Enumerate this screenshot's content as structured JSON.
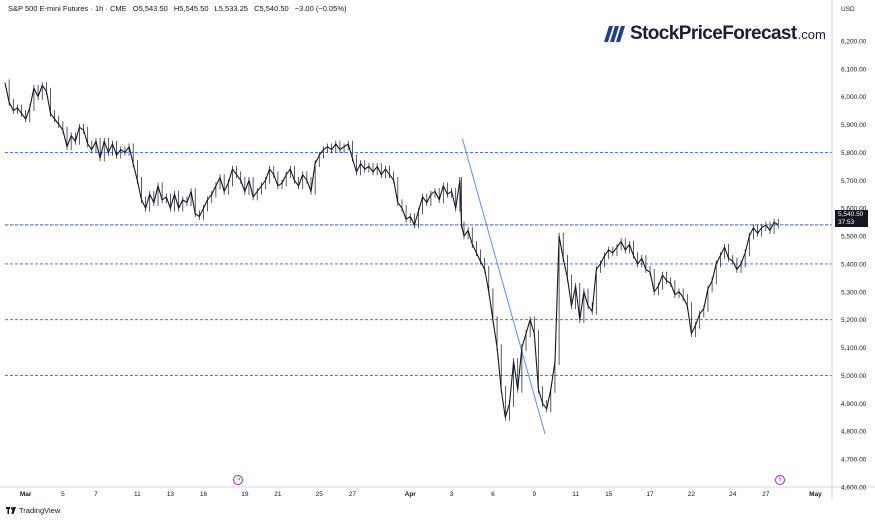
{
  "header": {
    "symbol": "S&P 500 E-mini Futures · 1h · CME",
    "open": "O5,543.50",
    "high": "H5,545.50",
    "low": "L5,533.25",
    "close": "C5,540.50",
    "change": "−3.00 (−0.05%)"
  },
  "logo": {
    "name": "StockPriceForecast",
    "domain": ".com"
  },
  "price_tag": {
    "price": "5,540.50",
    "countdown": "37:53"
  },
  "footer": {
    "brand": "TradingView"
  },
  "colors": {
    "candle": "#131722",
    "support": "#2962ff",
    "trendline": "#5b8def",
    "axis_text": "#131722"
  },
  "chart_data": {
    "type": "candlestick-line",
    "currency": "USD",
    "ylim": [
      4600,
      6300
    ],
    "y_ticks": [
      4600,
      4700,
      4800,
      4900,
      5000,
      5100,
      5200,
      5300,
      5400,
      5500,
      5600,
      5700,
      5800,
      5900,
      6000,
      6100,
      6200
    ],
    "y_tick_labels": [
      "4,600.00",
      "4,700.00",
      "4,800.00",
      "4,900.00",
      "5,000.00",
      "5,100.00",
      "5,200.00",
      "5,300.00",
      "5,400.00",
      "5,500.00",
      "5,600.00",
      "5,700.00",
      "5,800.00",
      "5,900.00",
      "6,000.00",
      "6,100.00",
      "6,200.00"
    ],
    "x_labels": [
      "Mar",
      "5",
      "7",
      "11",
      "13",
      "16",
      "19",
      "21",
      "25",
      "27",
      "Apr",
      "3",
      "6",
      "9",
      "11",
      "15",
      "17",
      "22",
      "24",
      "27",
      "May"
    ],
    "x_label_bold": [
      "Mar",
      "Apr",
      "May"
    ],
    "x_index": [
      2.5,
      7,
      11,
      16,
      20,
      24,
      29,
      33,
      38,
      42,
      49,
      54,
      59,
      64,
      69,
      73,
      78,
      83,
      88,
      92,
      98
    ],
    "x_range": [
      0,
      100
    ],
    "price_series": [
      [
        0,
        6050
      ],
      [
        0.5,
        5980
      ],
      [
        1,
        5950
      ],
      [
        1.5,
        5960
      ],
      [
        2,
        5940
      ],
      [
        2.5,
        5920
      ],
      [
        3,
        5960
      ],
      [
        3.5,
        6030
      ],
      [
        4,
        6000
      ],
      [
        4.5,
        6040
      ],
      [
        5,
        6020
      ],
      [
        5.5,
        5940
      ],
      [
        6,
        5920
      ],
      [
        6.5,
        5900
      ],
      [
        7,
        5880
      ],
      [
        7.5,
        5820
      ],
      [
        8,
        5860
      ],
      [
        8.5,
        5840
      ],
      [
        9,
        5890
      ],
      [
        9.5,
        5880
      ],
      [
        10,
        5830
      ],
      [
        10.5,
        5810
      ],
      [
        11,
        5840
      ],
      [
        11.5,
        5780
      ],
      [
        12,
        5840
      ],
      [
        12.5,
        5800
      ],
      [
        13,
        5830
      ],
      [
        13.5,
        5790
      ],
      [
        14,
        5810
      ],
      [
        14.5,
        5800
      ],
      [
        15,
        5820
      ],
      [
        15.5,
        5760
      ],
      [
        16,
        5700
      ],
      [
        16.5,
        5630
      ],
      [
        17,
        5600
      ],
      [
        17.5,
        5650
      ],
      [
        18,
        5620
      ],
      [
        18.5,
        5680
      ],
      [
        19,
        5630
      ],
      [
        19.5,
        5640
      ],
      [
        20,
        5600
      ],
      [
        20.5,
        5650
      ],
      [
        21,
        5600
      ],
      [
        21.5,
        5630
      ],
      [
        22,
        5620
      ],
      [
        22.5,
        5660
      ],
      [
        23,
        5580
      ],
      [
        23.5,
        5570
      ],
      [
        24,
        5600
      ],
      [
        24.5,
        5630
      ],
      [
        25,
        5650
      ],
      [
        25.5,
        5680
      ],
      [
        26,
        5710
      ],
      [
        26.5,
        5660
      ],
      [
        27,
        5690
      ],
      [
        27.5,
        5740
      ],
      [
        28,
        5720
      ],
      [
        28.5,
        5700
      ],
      [
        29,
        5660
      ],
      [
        29.5,
        5700
      ],
      [
        30,
        5640
      ],
      [
        30.5,
        5660
      ],
      [
        31,
        5680
      ],
      [
        31.5,
        5700
      ],
      [
        32,
        5740
      ],
      [
        32.5,
        5720
      ],
      [
        33,
        5680
      ],
      [
        33.5,
        5690
      ],
      [
        34,
        5720
      ],
      [
        34.5,
        5740
      ],
      [
        35,
        5700
      ],
      [
        35.5,
        5680
      ],
      [
        36,
        5720
      ],
      [
        36.5,
        5700
      ],
      [
        37,
        5660
      ],
      [
        37.5,
        5760
      ],
      [
        38,
        5790
      ],
      [
        38.5,
        5810
      ],
      [
        39,
        5820
      ],
      [
        39.5,
        5810
      ],
      [
        40,
        5830
      ],
      [
        40.5,
        5810
      ],
      [
        41,
        5820
      ],
      [
        41.5,
        5830
      ],
      [
        42,
        5780
      ],
      [
        42.5,
        5730
      ],
      [
        43,
        5760
      ],
      [
        43.5,
        5740
      ],
      [
        44,
        5750
      ],
      [
        44.5,
        5730
      ],
      [
        45,
        5750
      ],
      [
        45.5,
        5720
      ],
      [
        46,
        5740
      ],
      [
        46.5,
        5720
      ],
      [
        47,
        5700
      ],
      [
        47.5,
        5620
      ],
      [
        48,
        5600
      ],
      [
        48.5,
        5560
      ],
      [
        49,
        5570
      ],
      [
        49.5,
        5540
      ],
      [
        50,
        5590
      ],
      [
        50.5,
        5640
      ],
      [
        51,
        5620
      ],
      [
        51.5,
        5650
      ],
      [
        52,
        5660
      ],
      [
        52.5,
        5630
      ],
      [
        53,
        5680
      ],
      [
        53.5,
        5650
      ],
      [
        54,
        5660
      ],
      [
        54.5,
        5600
      ],
      [
        55,
        5700
      ],
      [
        55.2,
        5540
      ],
      [
        55.5,
        5500
      ],
      [
        56,
        5520
      ],
      [
        56.5,
        5470
      ],
      [
        57,
        5440
      ],
      [
        57.5,
        5410
      ],
      [
        58,
        5380
      ],
      [
        58.5,
        5300
      ],
      [
        59,
        5200
      ],
      [
        59.5,
        5100
      ],
      [
        60,
        4950
      ],
      [
        60.5,
        4850
      ],
      [
        61,
        4900
      ],
      [
        61.5,
        5050
      ],
      [
        62,
        4950
      ],
      [
        62.5,
        5100
      ],
      [
        63,
        5150
      ],
      [
        63.5,
        5200
      ],
      [
        64,
        5150
      ],
      [
        64.5,
        4950
      ],
      [
        65,
        4900
      ],
      [
        65.5,
        4880
      ],
      [
        66,
        4950
      ],
      [
        66.5,
        5050
      ],
      [
        67,
        5500
      ],
      [
        67.5,
        5420
      ],
      [
        68,
        5350
      ],
      [
        68.5,
        5250
      ],
      [
        69,
        5320
      ],
      [
        69.5,
        5200
      ],
      [
        70,
        5300
      ],
      [
        70.5,
        5250
      ],
      [
        71,
        5230
      ],
      [
        71.5,
        5380
      ],
      [
        72,
        5400
      ],
      [
        72.5,
        5430
      ],
      [
        73,
        5450
      ],
      [
        73.5,
        5440
      ],
      [
        74,
        5460
      ],
      [
        74.5,
        5480
      ],
      [
        75,
        5450
      ],
      [
        75.5,
        5470
      ],
      [
        76,
        5430
      ],
      [
        76.5,
        5400
      ],
      [
        77,
        5420
      ],
      [
        77.5,
        5380
      ],
      [
        78,
        5370
      ],
      [
        78.5,
        5300
      ],
      [
        79,
        5320
      ],
      [
        79.5,
        5360
      ],
      [
        80,
        5340
      ],
      [
        80.5,
        5330
      ],
      [
        81,
        5290
      ],
      [
        81.5,
        5300
      ],
      [
        82,
        5280
      ],
      [
        82.5,
        5250
      ],
      [
        83,
        5150
      ],
      [
        83.5,
        5180
      ],
      [
        84,
        5220
      ],
      [
        84.5,
        5240
      ],
      [
        85,
        5310
      ],
      [
        85.5,
        5340
      ],
      [
        86,
        5400
      ],
      [
        86.5,
        5430
      ],
      [
        87,
        5460
      ],
      [
        87.5,
        5420
      ],
      [
        88,
        5410
      ],
      [
        88.5,
        5380
      ],
      [
        89,
        5400
      ],
      [
        89.5,
        5440
      ],
      [
        90,
        5500
      ],
      [
        90.5,
        5530
      ],
      [
        91,
        5510
      ],
      [
        91.5,
        5530
      ],
      [
        92,
        5540
      ],
      [
        92.5,
        5520
      ],
      [
        93,
        5550
      ],
      [
        93.5,
        5540
      ]
    ],
    "support_levels": [
      5800,
      5540,
      5400,
      5200,
      5000
    ],
    "trendline": [
      [
        55.3,
        5850
      ],
      [
        65.3,
        4790
      ]
    ],
    "last_price": 5540.5
  }
}
